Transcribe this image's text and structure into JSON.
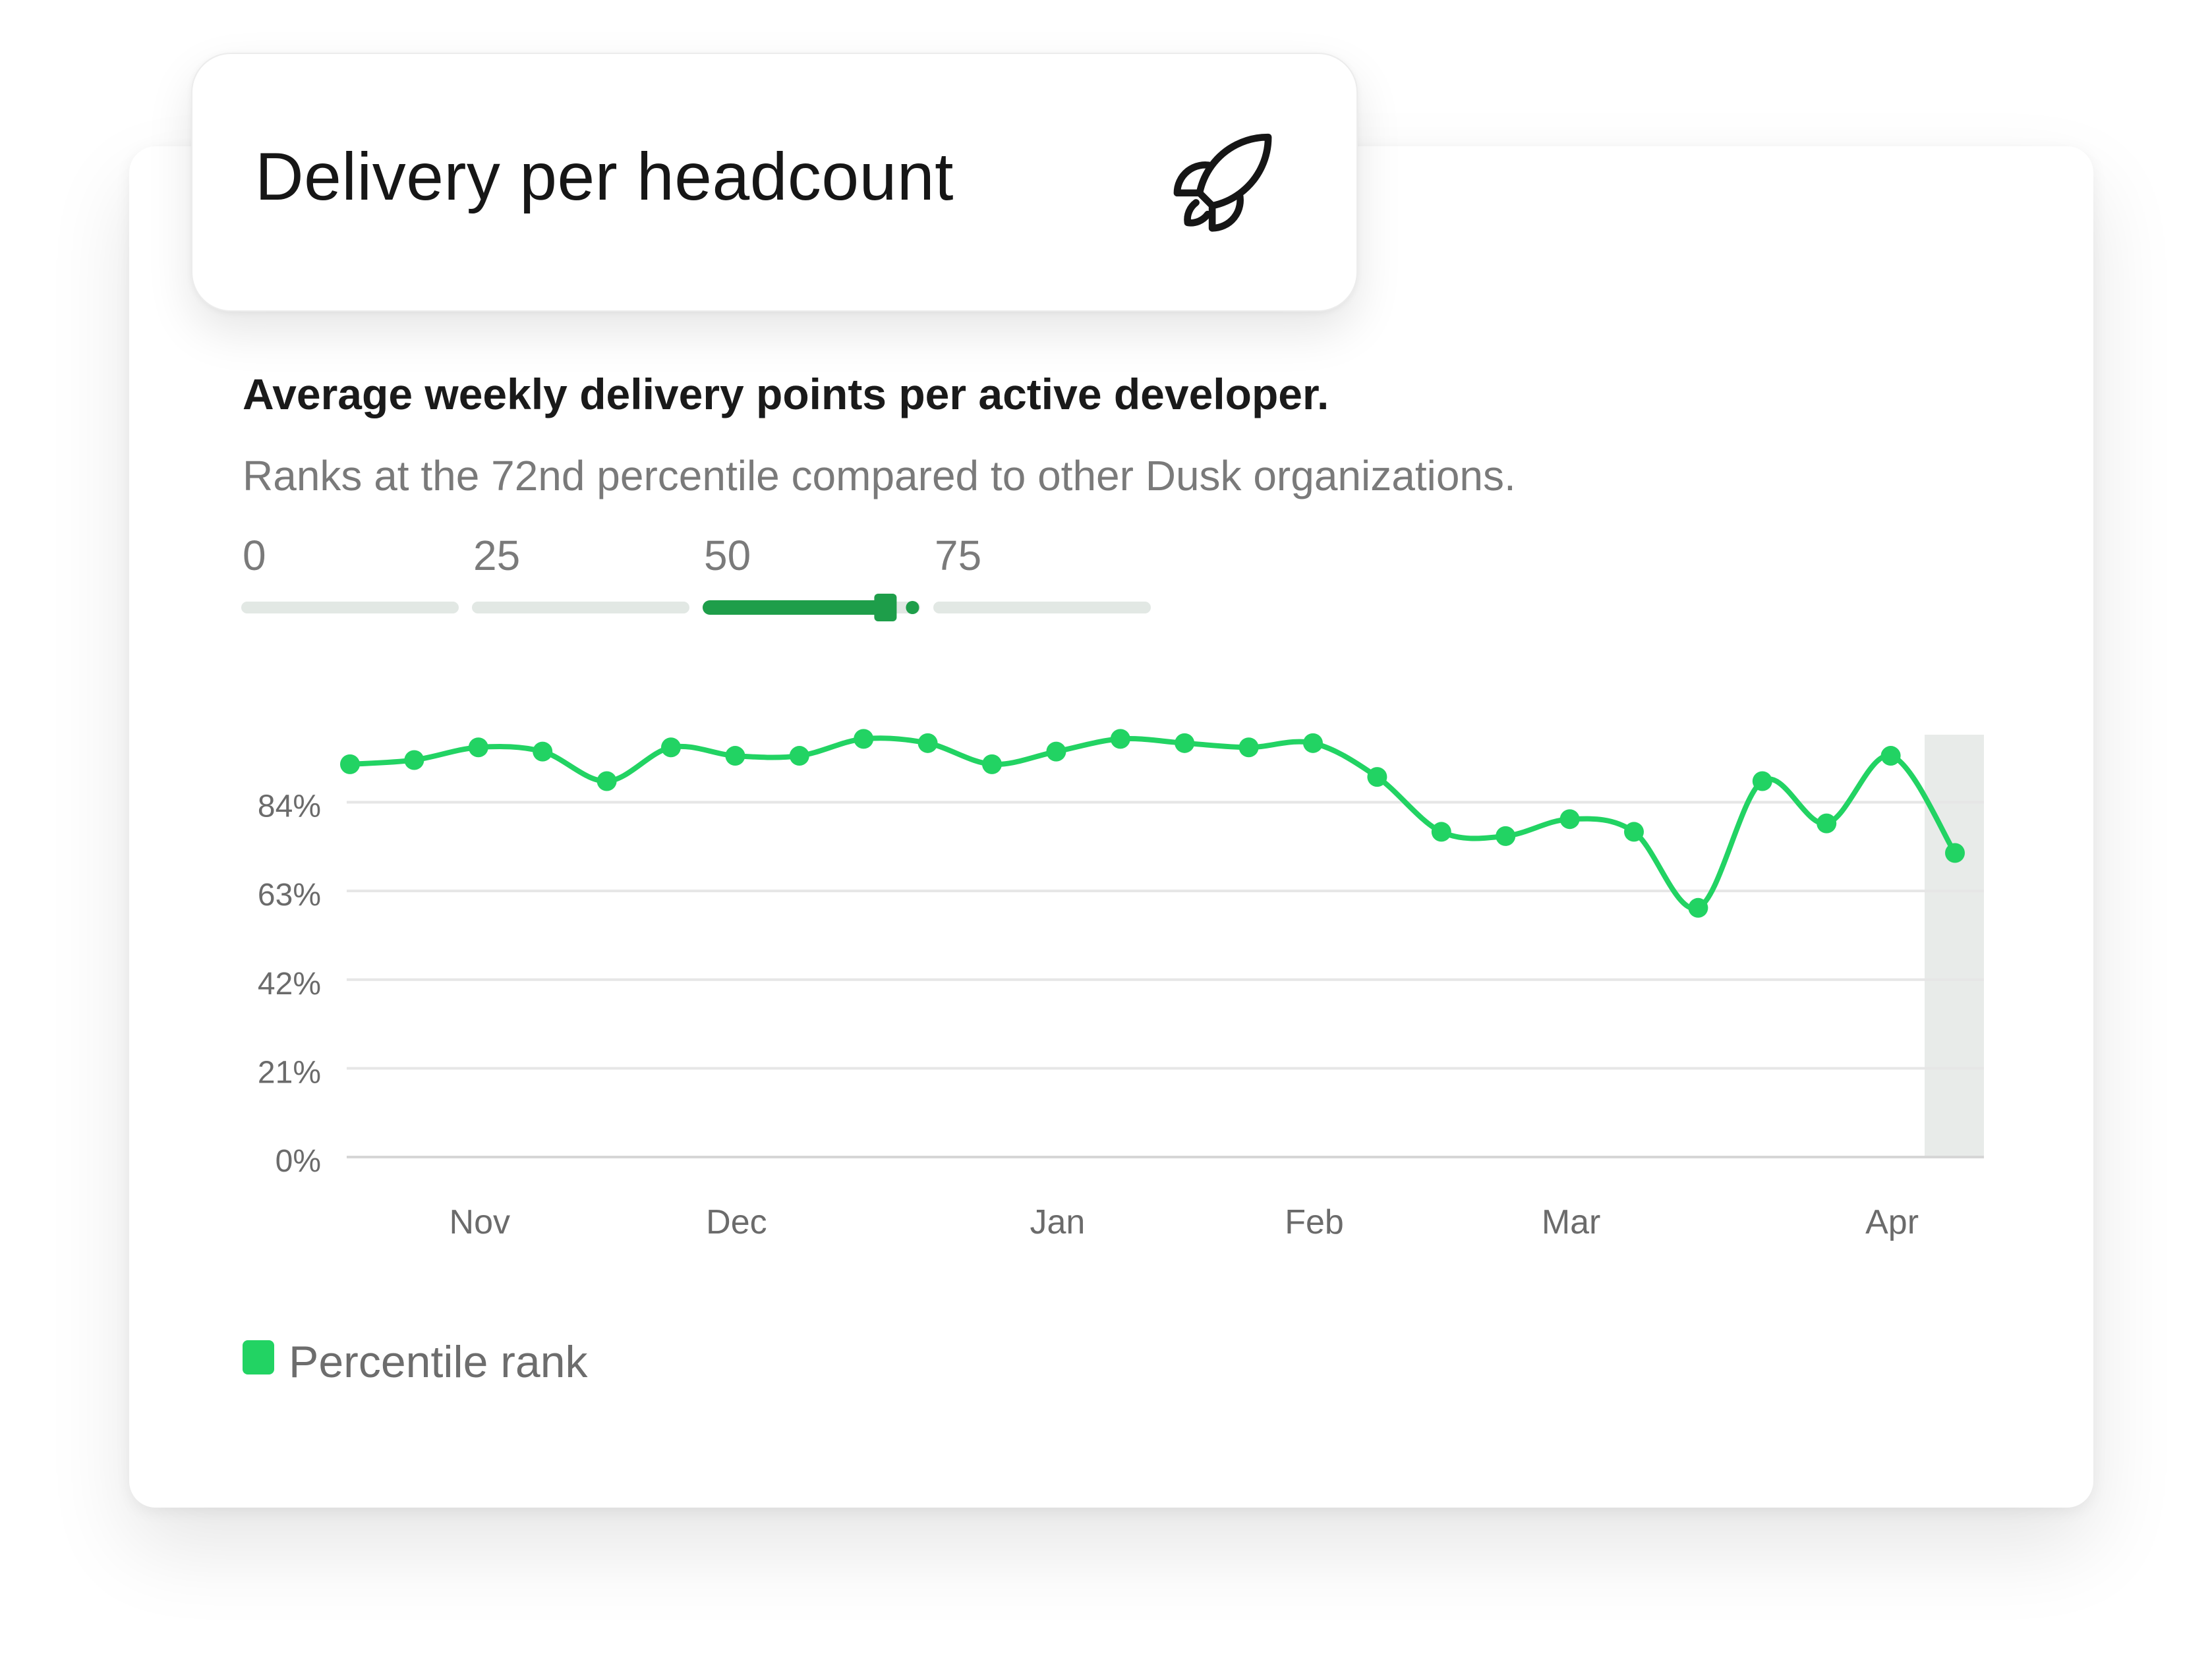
{
  "header": {
    "title": "Delivery per headcount",
    "icon": "rocket-icon"
  },
  "summary": {
    "headline": "Average weekly delivery points per active developer.",
    "rank_text": "Ranks at the 72nd percentile compared to other Dusk organizations."
  },
  "percentile_scale": {
    "labels": [
      "0",
      "25",
      "50",
      "75"
    ],
    "value": 72,
    "accent_color": "#1e9e4a"
  },
  "chart_data": {
    "type": "line",
    "ytick_labels": [
      "0%",
      "21%",
      "42%",
      "63%",
      "84%"
    ],
    "ylim": [
      0,
      100
    ],
    "xtick_labels": [
      "Nov",
      "Dec",
      "Jan",
      "Feb",
      "Mar",
      "Apr"
    ],
    "grid": true,
    "legend_position": "bottom-left",
    "series": [
      {
        "name": "Percentile rank",
        "color": "#22d363",
        "x": [
          "Oct 12",
          "Oct 19",
          "Oct 26",
          "Nov 2",
          "Nov 9",
          "Nov 16",
          "Nov 23",
          "Nov 30",
          "Dec 7",
          "Dec 14",
          "Dec 21",
          "Dec 28",
          "Jan 4",
          "Jan 11",
          "Jan 18",
          "Jan 25",
          "Feb 1",
          "Feb 8",
          "Feb 15",
          "Feb 22",
          "Mar 1",
          "Mar 8",
          "Mar 15",
          "Mar 22",
          "Mar 29",
          "Apr 5"
        ],
        "values": [
          93,
          94,
          97,
          96,
          89,
          97,
          95,
          95,
          99,
          98,
          93,
          96,
          99,
          98,
          97,
          98,
          90,
          77,
          76,
          80,
          77,
          59,
          89,
          79,
          95,
          72
        ]
      }
    ],
    "highlight_last_point": true
  }
}
